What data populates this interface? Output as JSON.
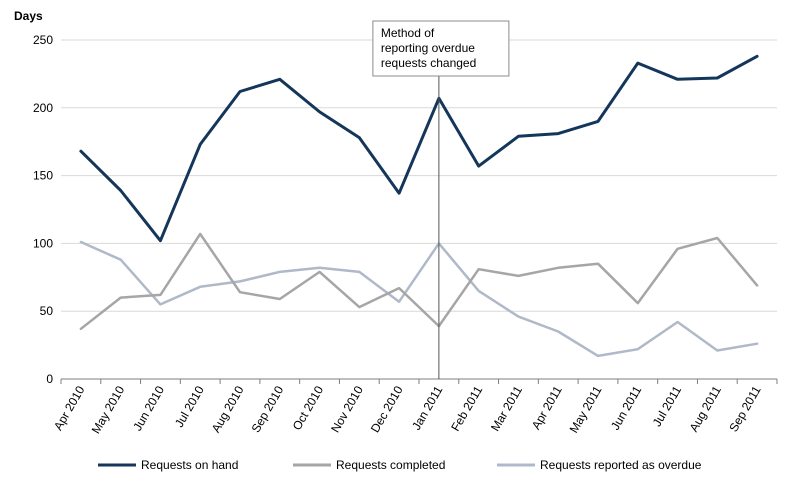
{
  "chart_data": {
    "type": "line",
    "ylabel": "Days",
    "ylim": [
      0,
      250
    ],
    "yticks": [
      0,
      50,
      100,
      150,
      200,
      250
    ],
    "grid": true,
    "categories": [
      "Apr 2010",
      "May 2010",
      "Jun 2010",
      "Jul 2010",
      "Aug 2010",
      "Sep 2010",
      "Oct 2010",
      "Nov 2010",
      "Dec 2010",
      "Jan 2011",
      "Feb 2011",
      "Mar 2011",
      "Apr 2011",
      "May 2011",
      "Jun 2011",
      "Jul 2011",
      "Aug 2011",
      "Sep 2011"
    ],
    "series": [
      {
        "name": "Requests on hand",
        "color": "#14365a",
        "values": [
          168,
          139,
          102,
          173,
          212,
          221,
          197,
          178,
          137,
          207,
          157,
          179,
          181,
          190,
          233,
          221,
          222,
          238
        ]
      },
      {
        "name": "Requests completed",
        "color": "#a6a6a6",
        "values": [
          37,
          60,
          62,
          107,
          64,
          59,
          79,
          53,
          67,
          39,
          81,
          76,
          82,
          85,
          56,
          96,
          104,
          69
        ]
      },
      {
        "name": "Requests reported as overdue",
        "color": "#b0b9c9",
        "values": [
          101,
          88,
          55,
          68,
          72,
          79,
          82,
          79,
          57,
          100,
          65,
          46,
          35,
          17,
          22,
          42,
          21,
          26
        ]
      }
    ],
    "annotation": {
      "category": "Jan 2011",
      "lines": [
        "Method of",
        "reporting overdue",
        "requests changed"
      ]
    },
    "legend_position": "bottom"
  }
}
